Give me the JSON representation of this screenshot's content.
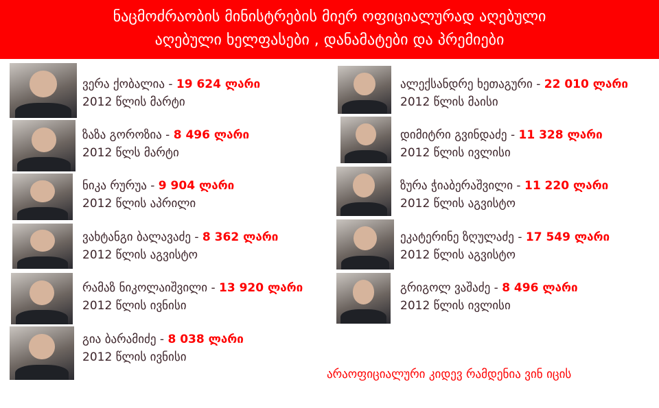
{
  "header": {
    "line1": "ნაცმოძრაობის მინისტრების მიერ ოფიციალურად აღებული",
    "line2": "აღებული ხელფასები , დანამატები და პრემიები"
  },
  "colors": {
    "accent": "#fe0000",
    "text": "#3c2329"
  },
  "left": [
    {
      "name": "ვერა ქობალია - ",
      "amount": "19 624 ლარი",
      "date": "2012 წლის მარტი"
    },
    {
      "name": "ზაზა გოროზია - ",
      "amount": "8 496 ლარი",
      "date": "2012 წლს მარტი"
    },
    {
      "name": "ნიკა რურუა - ",
      "amount": "9 904 ლარი",
      "date": "2012 წლის აპრილი"
    },
    {
      "name": "ვახტანგი ბალავაძე - ",
      "amount": "8 362  ლარი",
      "date": "2012 წლის აგვისტო"
    },
    {
      "name": "რამაზ ნიკოლაიშვილი - ",
      "amount": "13 920 ლარი",
      "date": "2012 წლის ივნისი"
    },
    {
      "name": "გია ბარამიძე - ",
      "amount": "8 038 ლარი",
      "date": "2012 წლის ივნისი"
    }
  ],
  "right": [
    {
      "name": "ალექსანდრე ხეთაგური - ",
      "amount": "22 010  ლარი",
      "date": "2012 წლის მაისი"
    },
    {
      "name": "დიმიტრი გვინდაძე - ",
      "amount": "11 328 ლარი",
      "date": "2012 წლის ივლისი"
    },
    {
      "name": "ზურა ჭიაბერაშვილი - ",
      "amount": "11 220 ლარი",
      "date": "2012 წლის აგვისტო"
    },
    {
      "name": "ეკატერინე ზღულაძე - ",
      "amount": "17 549 ლარი",
      "date": "2012 წლის აგვისტო"
    },
    {
      "name": "გრიგოლ ვაშაძე - ",
      "amount": "8 496 ლარი",
      "date": "2012 წლის ივლისი"
    }
  ],
  "footer": "არაოფიციალური კიდევ რამდენია ვინ იცის"
}
